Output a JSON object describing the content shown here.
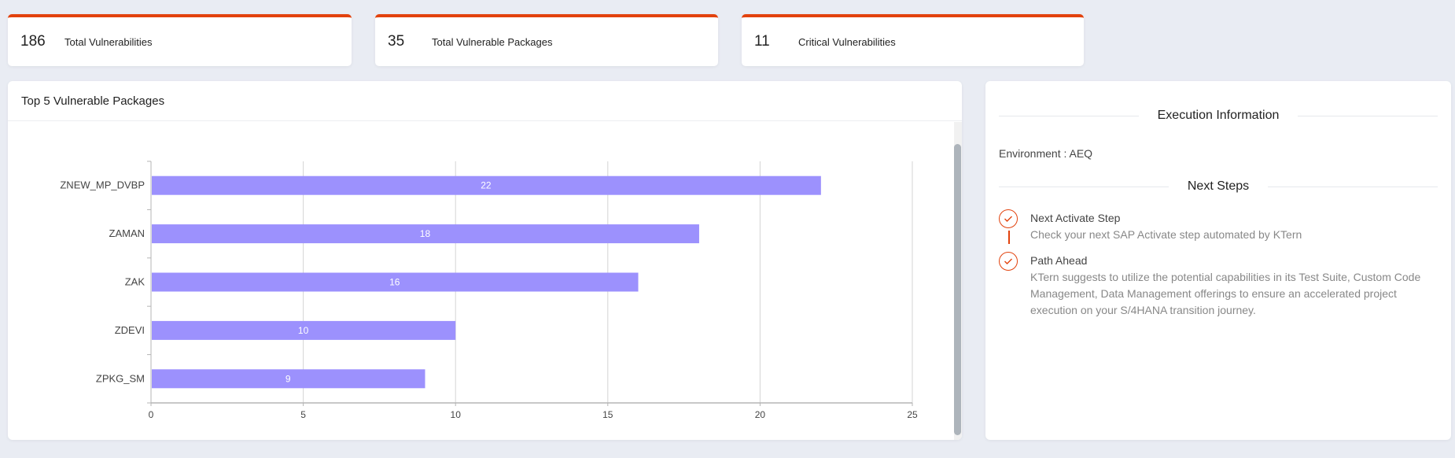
{
  "stats": [
    {
      "value": "186",
      "label": "Total Vulnerabilities"
    },
    {
      "value": "35",
      "label": "Total Vulnerable Packages"
    },
    {
      "value": "11",
      "label": "Critical Vulnerabilities"
    }
  ],
  "chart_panel": {
    "title": "Top 5 Vulnerable Packages"
  },
  "colors": {
    "accent": "#e2420d",
    "bar": "#9c91fd",
    "background": "#e9ecf3"
  },
  "chart_data": {
    "type": "bar",
    "orientation": "horizontal",
    "title": "Top 5 Vulnerable Packages",
    "categories": [
      "ZNEW_MP_DVBP",
      "ZAMAN",
      "ZAK",
      "ZDEVI",
      "ZPKG_SM"
    ],
    "values": [
      22,
      18,
      16,
      10,
      9
    ],
    "xlabel": "",
    "ylabel": "",
    "xlim": [
      0,
      25
    ],
    "xticks": [
      0,
      5,
      10,
      15,
      20,
      25
    ],
    "grid": true,
    "data_labels": true,
    "legend": null
  },
  "info_panel": {
    "execution_title": "Execution Information",
    "environment": "Environment : AEQ",
    "next_steps_title": "Next Steps",
    "steps": [
      {
        "icon": "check-circle-icon",
        "title": "Next Activate Step",
        "description": "Check your next SAP Activate step automated by KTern"
      },
      {
        "icon": "check-circle-icon",
        "title": "Path Ahead",
        "description": "KTern suggests to utilize the potential capabilities in its Test Suite, Custom Code Management, Data Management offerings to ensure an accelerated project execution on your S/4HANA transition journey."
      }
    ]
  }
}
